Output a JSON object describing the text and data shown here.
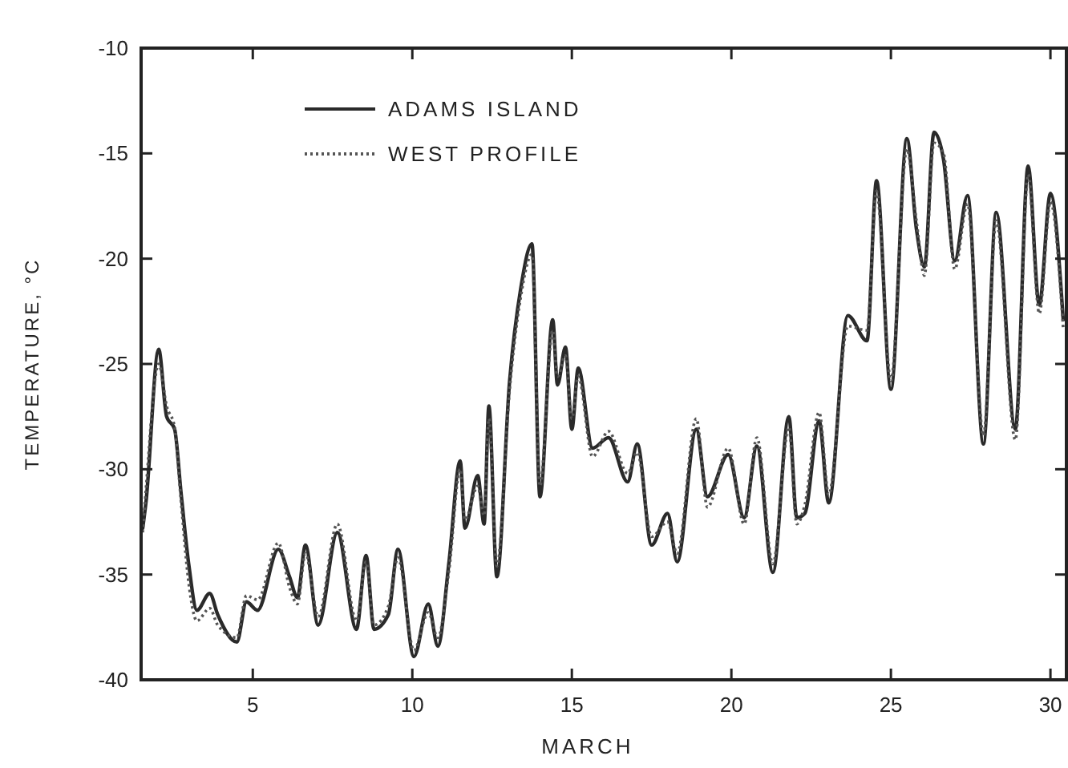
{
  "chart_data": {
    "type": "line",
    "xlabel": "MARCH",
    "ylabel": "TEMPERATURE, °C",
    "x": [
      1.55,
      1.65,
      2.05,
      2.3,
      2.55,
      2.75,
      3.0,
      3.25,
      3.65,
      3.9,
      4.5,
      4.8,
      5.15,
      5.8,
      6.15,
      6.4,
      6.65,
      7.05,
      7.65,
      8.25,
      8.55,
      8.8,
      9.25,
      9.55,
      10.05,
      10.5,
      10.8,
      11.15,
      11.5,
      11.65,
      12.05,
      12.25,
      12.4,
      12.65,
      13.05,
      13.4,
      13.75,
      14.0,
      14.4,
      14.55,
      14.8,
      15.0,
      15.2,
      15.65,
      16.15,
      16.75,
      17.05,
      17.5,
      18.0,
      18.3,
      18.9,
      19.25,
      19.9,
      20.4,
      20.8,
      21.3,
      21.8,
      22.05,
      22.3,
      22.75,
      23.05,
      23.65,
      24.25,
      24.55,
      25.0,
      25.5,
      25.8,
      26.05,
      26.35,
      26.65,
      27.0,
      27.4,
      27.9,
      28.3,
      28.9,
      29.3,
      29.65,
      30.0,
      30.4
    ],
    "series": [
      {
        "name": "ADAMS ISLAND",
        "color": "#2a2a2a",
        "line_style": "solid",
        "values": [
          -32.8,
          -31.6,
          -24.3,
          -27.5,
          -28.1,
          -31.1,
          -34.6,
          -36.7,
          -35.9,
          -36.9,
          -38.2,
          -36.3,
          -36.7,
          -33.8,
          -35.1,
          -36.1,
          -33.6,
          -37.4,
          -33.0,
          -37.6,
          -34.1,
          -37.6,
          -36.9,
          -33.8,
          -38.9,
          -36.4,
          -38.4,
          -34.4,
          -29.6,
          -32.8,
          -30.3,
          -32.6,
          -27.0,
          -35.1,
          -25.8,
          -21.4,
          -19.3,
          -31.3,
          -22.9,
          -26.0,
          -24.2,
          -28.1,
          -25.2,
          -29.0,
          -28.5,
          -30.6,
          -28.8,
          -33.6,
          -32.1,
          -34.4,
          -28.1,
          -31.3,
          -29.3,
          -32.3,
          -28.9,
          -34.9,
          -27.5,
          -32.3,
          -32.1,
          -27.7,
          -31.6,
          -22.7,
          -23.9,
          -16.3,
          -26.2,
          -14.3,
          -18.6,
          -20.4,
          -14.0,
          -15.3,
          -20.1,
          -17.0,
          -28.8,
          -17.8,
          -28.1,
          -15.6,
          -22.2,
          -16.9,
          -22.9
        ]
      },
      {
        "name": "WEST PROFILE",
        "color": "#555555",
        "line_style": "dotted",
        "values": [
          -33.0,
          -31.0,
          -25.0,
          -27.0,
          -28.0,
          -31.5,
          -35.5,
          -37.2,
          -36.6,
          -37.4,
          -38.0,
          -36.0,
          -36.2,
          -33.5,
          -35.6,
          -36.4,
          -34.0,
          -37.0,
          -32.6,
          -37.2,
          -34.4,
          -37.4,
          -36.5,
          -34.2,
          -38.6,
          -36.8,
          -38.0,
          -34.8,
          -30.0,
          -32.4,
          -30.8,
          -32.2,
          -27.6,
          -34.6,
          -26.2,
          -21.8,
          -19.8,
          -30.8,
          -23.4,
          -25.6,
          -24.6,
          -27.6,
          -25.6,
          -29.4,
          -28.2,
          -30.2,
          -29.2,
          -33.2,
          -32.5,
          -34.0,
          -27.6,
          -31.8,
          -29.0,
          -32.6,
          -28.5,
          -34.5,
          -28.0,
          -32.6,
          -31.7,
          -27.3,
          -31.2,
          -23.2,
          -23.4,
          -16.8,
          -25.8,
          -14.8,
          -18.2,
          -20.8,
          -14.5,
          -15.0,
          -20.5,
          -17.4,
          -28.4,
          -18.2,
          -28.6,
          -16.0,
          -22.6,
          -17.3,
          -23.3
        ]
      }
    ],
    "xlim": [
      1.5,
      30.5
    ],
    "xticks": [
      5,
      10,
      15,
      20,
      25,
      30
    ],
    "ylim": [
      -40,
      -10
    ],
    "yticks": [
      -10,
      -15,
      -20,
      -25,
      -30,
      -35,
      -40
    ],
    "legend": "top left",
    "grid": false
  }
}
